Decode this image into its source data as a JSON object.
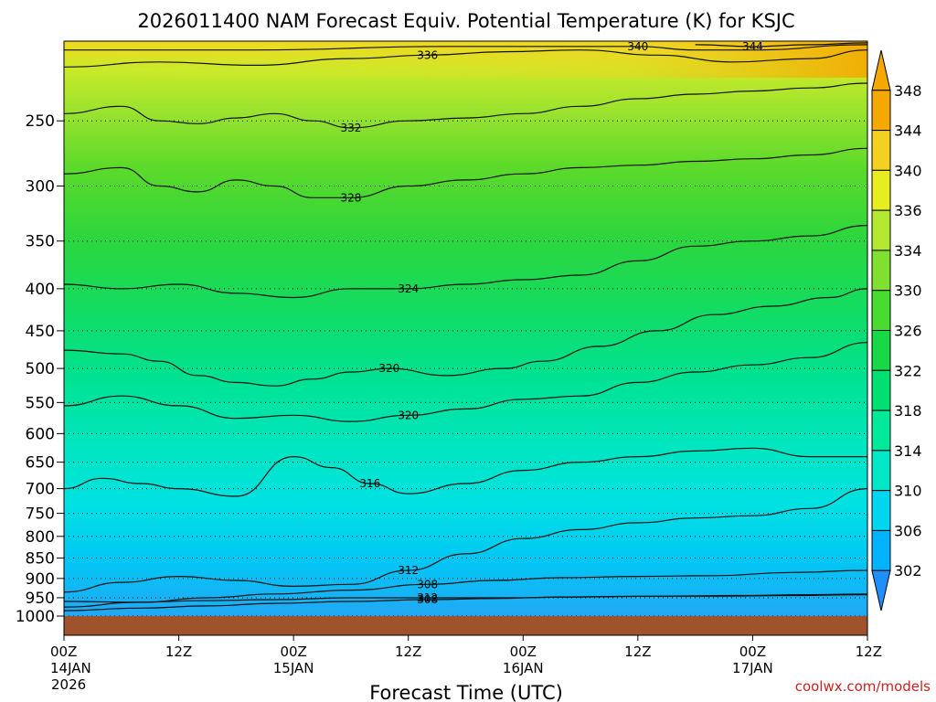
{
  "title": "2026011400 NAM Forecast Equiv. Potential Temperature (K) for KSJC",
  "xlabel": "Forecast Time (UTC)",
  "credit": "coolwx.com/models",
  "colors": {
    "ground": "#a0522d",
    "colorbar": [
      "#1e90ff",
      "#00b2ff",
      "#00d6f0",
      "#00e8c8",
      "#00e89a",
      "#00e070",
      "#18d848",
      "#48dc30",
      "#80e030",
      "#b4e830",
      "#e6ee20",
      "#f4d020",
      "#f4a800"
    ]
  },
  "chart_data": {
    "type": "heatmap",
    "title": "2026011400 NAM Forecast Equiv. Potential Temperature (K) for KSJC",
    "xlabel": "Forecast Time (UTC)",
    "ylabel": "",
    "x_ticks": [
      {
        "hour": 0,
        "label": "00Z",
        "date": "14JAN",
        "year": "2026"
      },
      {
        "hour": 12,
        "label": "12Z",
        "date": "",
        "year": ""
      },
      {
        "hour": 24,
        "label": "00Z",
        "date": "15JAN",
        "year": ""
      },
      {
        "hour": 36,
        "label": "12Z",
        "date": "",
        "year": ""
      },
      {
        "hour": 48,
        "label": "00Z",
        "date": "16JAN",
        "year": ""
      },
      {
        "hour": 60,
        "label": "12Z",
        "date": "",
        "year": ""
      },
      {
        "hour": 72,
        "label": "00Z",
        "date": "17JAN",
        "year": ""
      },
      {
        "hour": 84,
        "label": "12Z",
        "date": "",
        "year": ""
      }
    ],
    "xlim": [
      0,
      84
    ],
    "y_ticks": [
      250,
      300,
      350,
      400,
      450,
      500,
      550,
      600,
      650,
      700,
      750,
      800,
      850,
      900,
      950,
      1000
    ],
    "ylim_hpa": [
      200,
      1000
    ],
    "y_scale": "log-pressure",
    "grid": true,
    "colorbar_ticks": [
      302,
      306,
      310,
      314,
      318,
      322,
      326,
      330,
      334,
      336,
      340,
      344,
      348
    ],
    "contours": [
      {
        "value": 308,
        "label": "308",
        "points": [
          [
            0,
            985
          ],
          [
            8,
            978
          ],
          [
            15,
            972
          ],
          [
            22,
            965
          ],
          [
            30,
            960
          ],
          [
            38,
            955
          ],
          [
            45,
            952
          ],
          [
            52,
            948
          ],
          [
            60,
            946
          ],
          [
            68,
            946
          ],
          [
            76,
            944
          ],
          [
            84,
            942
          ]
        ]
      },
      {
        "value": 308,
        "label": "308",
        "points": [
          [
            0,
            975
          ],
          [
            8,
            962
          ],
          [
            15,
            950
          ],
          [
            22,
            940
          ],
          [
            30,
            930
          ],
          [
            38,
            915
          ],
          [
            45,
            905
          ],
          [
            52,
            898
          ],
          [
            60,
            895
          ],
          [
            68,
            893
          ],
          [
            76,
            885
          ],
          [
            84,
            880
          ]
        ]
      },
      {
        "value": 312,
        "label": "312",
        "points": [
          [
            0,
            935
          ],
          [
            6,
            910
          ],
          [
            12,
            895
          ],
          [
            18,
            905
          ],
          [
            24,
            920
          ],
          [
            30,
            915
          ],
          [
            36,
            880
          ],
          [
            42,
            840
          ],
          [
            48,
            805
          ],
          [
            54,
            785
          ],
          [
            60,
            770
          ],
          [
            66,
            760
          ],
          [
            72,
            755
          ],
          [
            78,
            740
          ],
          [
            84,
            700
          ]
        ]
      },
      {
        "value": 312,
        "label": "312",
        "points": [
          [
            0,
            960
          ],
          [
            8,
            962
          ],
          [
            14,
            958
          ],
          [
            22,
            955
          ],
          [
            30,
            950
          ],
          [
            38,
            950
          ],
          [
            46,
            950
          ],
          [
            54,
            948
          ],
          [
            62,
            946
          ],
          [
            70,
            944
          ],
          [
            78,
            942
          ],
          [
            84,
            940
          ]
        ]
      },
      {
        "value": 316,
        "label": "316",
        "points": [
          [
            0,
            700
          ],
          [
            4,
            680
          ],
          [
            8,
            690
          ],
          [
            12,
            700
          ],
          [
            18,
            715
          ],
          [
            24,
            640
          ],
          [
            28,
            660
          ],
          [
            32,
            690
          ],
          [
            36,
            710
          ],
          [
            42,
            690
          ],
          [
            48,
            665
          ],
          [
            54,
            650
          ],
          [
            60,
            640
          ],
          [
            66,
            630
          ],
          [
            72,
            625
          ],
          [
            78,
            640
          ],
          [
            84,
            640
          ]
        ]
      },
      {
        "value": 320,
        "label": "320",
        "points": [
          [
            0,
            555
          ],
          [
            6,
            540
          ],
          [
            12,
            555
          ],
          [
            18,
            575
          ],
          [
            24,
            570
          ],
          [
            30,
            580
          ],
          [
            36,
            570
          ],
          [
            42,
            560
          ],
          [
            48,
            545
          ],
          [
            54,
            540
          ],
          [
            60,
            520
          ],
          [
            66,
            505
          ],
          [
            72,
            495
          ],
          [
            78,
            485
          ],
          [
            84,
            465
          ]
        ]
      },
      {
        "value": 320,
        "label": "320",
        "points": [
          [
            0,
            475
          ],
          [
            6,
            480
          ],
          [
            10,
            490
          ],
          [
            14,
            510
          ],
          [
            18,
            520
          ],
          [
            22,
            525
          ],
          [
            26,
            515
          ],
          [
            30,
            505
          ],
          [
            34,
            500
          ],
          [
            40,
            510
          ],
          [
            46,
            500
          ],
          [
            50,
            490
          ],
          [
            56,
            470
          ],
          [
            62,
            450
          ],
          [
            68,
            430
          ],
          [
            74,
            420
          ],
          [
            80,
            410
          ],
          [
            84,
            400
          ]
        ]
      },
      {
        "value": 324,
        "label": "324",
        "points": [
          [
            0,
            395
          ],
          [
            6,
            400
          ],
          [
            12,
            395
          ],
          [
            18,
            405
          ],
          [
            24,
            410
          ],
          [
            30,
            400
          ],
          [
            36,
            400
          ],
          [
            42,
            395
          ],
          [
            48,
            390
          ],
          [
            54,
            385
          ],
          [
            60,
            370
          ],
          [
            66,
            355
          ],
          [
            72,
            350
          ],
          [
            78,
            345
          ],
          [
            84,
            335
          ]
        ]
      },
      {
        "value": 328,
        "label": "328",
        "points": [
          [
            0,
            290
          ],
          [
            6,
            285
          ],
          [
            10,
            300
          ],
          [
            14,
            305
          ],
          [
            18,
            295
          ],
          [
            22,
            300
          ],
          [
            26,
            310
          ],
          [
            30,
            310
          ],
          [
            36,
            300
          ],
          [
            42,
            295
          ],
          [
            48,
            290
          ],
          [
            54,
            285
          ],
          [
            60,
            283
          ],
          [
            66,
            280
          ],
          [
            72,
            278
          ],
          [
            78,
            275
          ],
          [
            84,
            270
          ]
        ]
      },
      {
        "value": 332,
        "label": "332",
        "points": [
          [
            0,
            245
          ],
          [
            6,
            240
          ],
          [
            10,
            250
          ],
          [
            14,
            252
          ],
          [
            18,
            248
          ],
          [
            22,
            245
          ],
          [
            26,
            250
          ],
          [
            30,
            255
          ],
          [
            36,
            250
          ],
          [
            42,
            248
          ],
          [
            48,
            245
          ],
          [
            54,
            240
          ],
          [
            60,
            235
          ],
          [
            66,
            232
          ],
          [
            72,
            230
          ],
          [
            78,
            228
          ],
          [
            84,
            225
          ]
        ]
      },
      {
        "value": 336,
        "label": "336",
        "points": [
          [
            0,
            215
          ],
          [
            10,
            212
          ],
          [
            20,
            214
          ],
          [
            30,
            210
          ],
          [
            38,
            208
          ],
          [
            46,
            206
          ],
          [
            54,
            205
          ],
          [
            62,
            208
          ],
          [
            70,
            212
          ],
          [
            78,
            210
          ],
          [
            84,
            205
          ]
        ]
      },
      {
        "value": 340,
        "label": "340",
        "points": [
          [
            0,
            205
          ],
          [
            20,
            205
          ],
          [
            40,
            203
          ],
          [
            60,
            203
          ],
          [
            66,
            205
          ],
          [
            72,
            205
          ],
          [
            84,
            202
          ]
        ]
      },
      {
        "value": 344,
        "label": "344",
        "points": [
          [
            66,
            202
          ],
          [
            72,
            203
          ],
          [
            78,
            202
          ],
          [
            84,
            201
          ]
        ]
      }
    ]
  }
}
